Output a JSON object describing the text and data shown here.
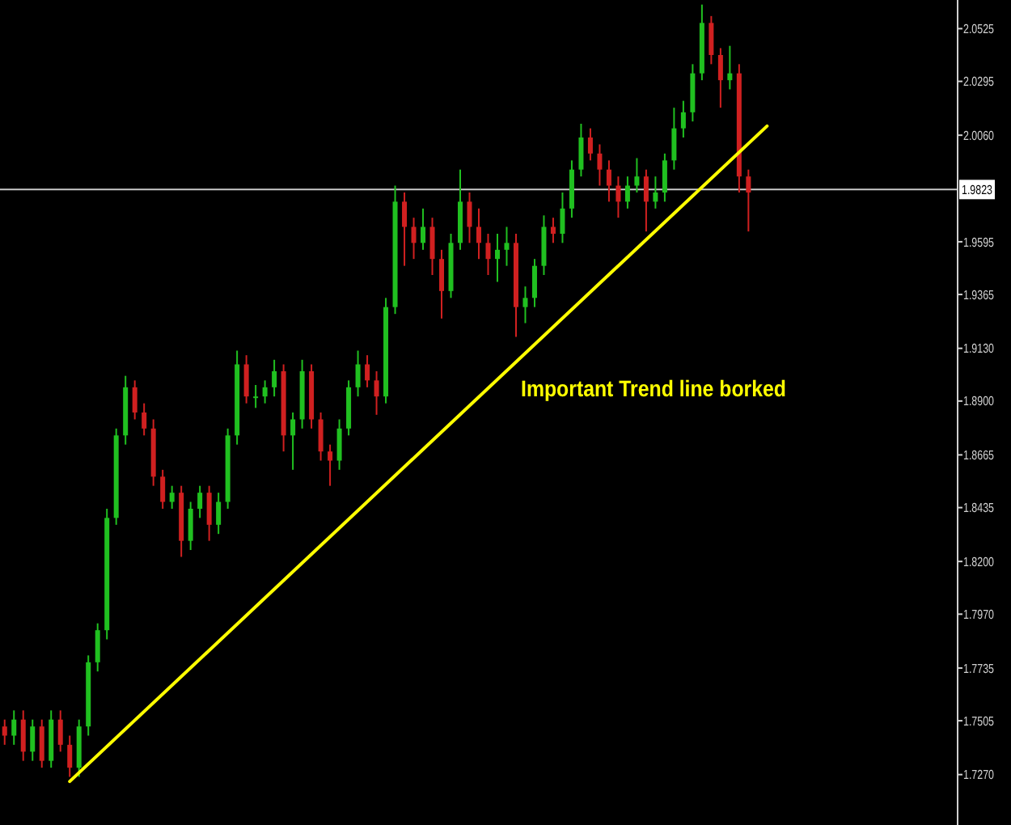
{
  "chart_data": {
    "type": "candlestick",
    "categories": [
      null,
      null,
      null,
      null,
      null,
      null,
      null,
      null,
      null,
      null,
      null,
      null,
      null,
      null,
      null,
      null,
      null,
      null,
      null,
      null,
      null,
      null,
      null,
      null,
      null,
      null,
      null,
      null,
      null,
      null,
      null,
      null,
      null,
      null,
      null,
      null,
      null,
      null,
      null,
      null,
      null,
      null,
      null,
      null,
      null,
      null,
      null,
      null,
      null,
      null,
      null,
      null,
      null,
      null,
      null,
      null,
      null,
      null,
      null,
      null,
      null,
      null,
      null,
      null,
      null,
      null,
      null,
      null,
      null,
      null,
      null,
      null,
      null,
      null,
      null,
      null,
      null,
      null,
      null,
      null,
      null,
      null,
      null,
      null,
      null,
      null,
      null,
      null,
      null,
      null,
      null,
      null,
      null,
      null,
      null,
      null,
      null,
      null,
      null,
      null,
      null,
      null,
      null
    ],
    "ohlc": [
      [
        1.748,
        1.751,
        1.74,
        1.744
      ],
      [
        1.744,
        1.755,
        1.74,
        1.751
      ],
      [
        1.751,
        1.755,
        1.733,
        1.737
      ],
      [
        1.737,
        1.751,
        1.733,
        1.748
      ],
      [
        1.748,
        1.751,
        1.73,
        1.733
      ],
      [
        1.733,
        1.755,
        1.73,
        1.751
      ],
      [
        1.751,
        1.755,
        1.737,
        1.74
      ],
      [
        1.74,
        1.744,
        1.726,
        1.73
      ],
      [
        1.73,
        1.751,
        1.726,
        1.748
      ],
      [
        1.748,
        1.779,
        1.744,
        1.776
      ],
      [
        1.776,
        1.793,
        1.772,
        1.79
      ],
      [
        1.79,
        1.843,
        1.786,
        1.839
      ],
      [
        1.839,
        1.878,
        1.836,
        1.875
      ],
      [
        1.875,
        1.901,
        1.871,
        1.896
      ],
      [
        1.896,
        1.899,
        1.882,
        1.885
      ],
      [
        1.885,
        1.889,
        1.875,
        1.878
      ],
      [
        1.878,
        1.882,
        1.853,
        1.857
      ],
      [
        1.857,
        1.86,
        1.843,
        1.846
      ],
      [
        1.846,
        1.853,
        1.843,
        1.85
      ],
      [
        1.85,
        1.853,
        1.822,
        1.829
      ],
      [
        1.829,
        1.846,
        1.825,
        1.843
      ],
      [
        1.843,
        1.853,
        1.839,
        1.85
      ],
      [
        1.85,
        1.853,
        1.829,
        1.836
      ],
      [
        1.836,
        1.85,
        1.832,
        1.846
      ],
      [
        1.846,
        1.878,
        1.843,
        1.875
      ],
      [
        1.875,
        1.912,
        1.871,
        1.906
      ],
      [
        1.906,
        1.91,
        1.889,
        1.892
      ],
      [
        1.892,
        1.897,
        1.887,
        1.892
      ],
      [
        1.892,
        1.899,
        1.889,
        1.896
      ],
      [
        1.896,
        1.908,
        1.892,
        1.903
      ],
      [
        1.903,
        1.906,
        1.868,
        1.875
      ],
      [
        1.875,
        1.885,
        1.86,
        1.882
      ],
      [
        1.882,
        1.908,
        1.878,
        1.903
      ],
      [
        1.903,
        1.906,
        1.878,
        1.882
      ],
      [
        1.882,
        1.885,
        1.864,
        1.868
      ],
      [
        1.868,
        1.871,
        1.853,
        1.864
      ],
      [
        1.864,
        1.882,
        1.86,
        1.878
      ],
      [
        1.878,
        1.899,
        1.875,
        1.896
      ],
      [
        1.896,
        1.912,
        1.892,
        1.906
      ],
      [
        1.906,
        1.91,
        1.896,
        1.899
      ],
      [
        1.899,
        1.903,
        1.884,
        1.892
      ],
      [
        1.892,
        1.935,
        1.889,
        1.931
      ],
      [
        1.931,
        1.984,
        1.928,
        1.977
      ],
      [
        1.977,
        1.981,
        1.949,
        1.966
      ],
      [
        1.966,
        1.97,
        1.952,
        1.959
      ],
      [
        1.959,
        1.974,
        1.956,
        1.966
      ],
      [
        1.966,
        1.97,
        1.945,
        1.952
      ],
      [
        1.952,
        1.956,
        1.926,
        1.938
      ],
      [
        1.938,
        1.963,
        1.935,
        1.959
      ],
      [
        1.959,
        1.991,
        1.956,
        1.977
      ],
      [
        1.977,
        1.981,
        1.959,
        1.966
      ],
      [
        1.966,
        1.974,
        1.952,
        1.959
      ],
      [
        1.959,
        1.963,
        1.945,
        1.952
      ],
      [
        1.952,
        1.963,
        1.942,
        1.956
      ],
      [
        1.956,
        1.966,
        1.949,
        1.959
      ],
      [
        1.959,
        1.963,
        1.918,
        1.931
      ],
      [
        1.931,
        1.94,
        1.924,
        1.935
      ],
      [
        1.935,
        1.952,
        1.931,
        1.949
      ],
      [
        1.949,
        1.971,
        1.945,
        1.966
      ],
      [
        1.966,
        1.97,
        1.959,
        1.963
      ],
      [
        1.963,
        1.981,
        1.959,
        1.974
      ],
      [
        1.974,
        1.995,
        1.97,
        1.991
      ],
      [
        1.991,
        2.011,
        1.988,
        2.005
      ],
      [
        2.005,
        2.009,
        1.995,
        1.998
      ],
      [
        1.998,
        2.002,
        1.984,
        1.991
      ],
      [
        1.991,
        1.995,
        1.977,
        1.984
      ],
      [
        1.984,
        1.988,
        1.97,
        1.977
      ],
      [
        1.977,
        1.988,
        1.974,
        1.984
      ],
      [
        1.984,
        1.996,
        1.981,
        1.988
      ],
      [
        1.988,
        1.991,
        1.964,
        1.977
      ],
      [
        1.977,
        1.988,
        1.974,
        1.981
      ],
      [
        1.981,
        1.998,
        1.977,
        1.995
      ],
      [
        1.995,
        2.018,
        1.991,
        2.009
      ],
      [
        2.009,
        2.021,
        2.005,
        2.016
      ],
      [
        2.016,
        2.037,
        2.012,
        2.033
      ],
      [
        2.033,
        2.063,
        2.03,
        2.055
      ],
      [
        2.055,
        2.058,
        2.037,
        2.041
      ],
      [
        2.041,
        2.044,
        2.018,
        2.03
      ],
      [
        2.03,
        2.045,
        2.026,
        2.033
      ],
      [
        2.033,
        2.037,
        1.981,
        1.988
      ],
      [
        1.988,
        1.991,
        1.964,
        1.981
      ],
      null,
      null,
      null,
      null,
      null,
      null,
      null,
      null,
      null,
      null,
      null,
      null,
      null,
      null,
      null,
      null,
      null,
      null,
      null,
      null,
      null,
      null
    ],
    "series": [
      {
        "type": "line",
        "color": "#ffff00",
        "values": [
          null,
          null,
          null,
          null,
          null,
          null,
          null,
          1.724,
          null,
          null,
          null,
          null,
          null,
          null,
          null,
          null,
          null,
          null,
          null,
          null,
          null,
          null,
          null,
          null,
          null,
          null,
          null,
          null,
          null,
          null,
          null,
          null,
          null,
          null,
          null,
          null,
          null,
          null,
          null,
          null,
          null,
          null,
          null,
          null,
          null,
          null,
          null,
          null,
          null,
          null,
          null,
          null,
          null,
          null,
          null,
          null,
          null,
          null,
          null,
          null,
          null,
          null,
          null,
          null,
          null,
          null,
          null,
          null,
          null,
          null,
          null,
          null,
          null,
          null,
          null,
          null,
          null,
          null,
          null,
          null,
          null,
          null,
          2.01,
          null,
          null,
          null,
          null,
          null,
          null,
          null,
          null,
          null,
          null,
          null,
          null,
          null,
          null,
          null,
          null,
          null,
          null,
          null,
          null
        ]
      }
    ],
    "ylim": [
      1.705,
      2.065
    ],
    "yticks": [
      2.0525,
      2.0295,
      {
        "value": 2.006,
        "label": "2.0060"
      },
      1.9595,
      1.9365,
      {
        "value": 1.913,
        "label": "1.9130"
      },
      {
        "value": 1.89,
        "label": "1.8900"
      },
      1.8665,
      1.8435,
      {
        "value": 1.82,
        "label": "1.8200"
      },
      {
        "value": 1.797,
        "label": "1.7970"
      },
      1.7735,
      1.7505,
      {
        "value": 1.727,
        "label": "1.7270"
      }
    ],
    "ref_lines": [
      {
        "axis": "y",
        "value": 1.9823,
        "label": "1.9823",
        "color": "#c8c8c8"
      }
    ],
    "annotations": [
      "Important Trend line borked"
    ],
    "tick_labels": "y",
    "grid": false
  }
}
